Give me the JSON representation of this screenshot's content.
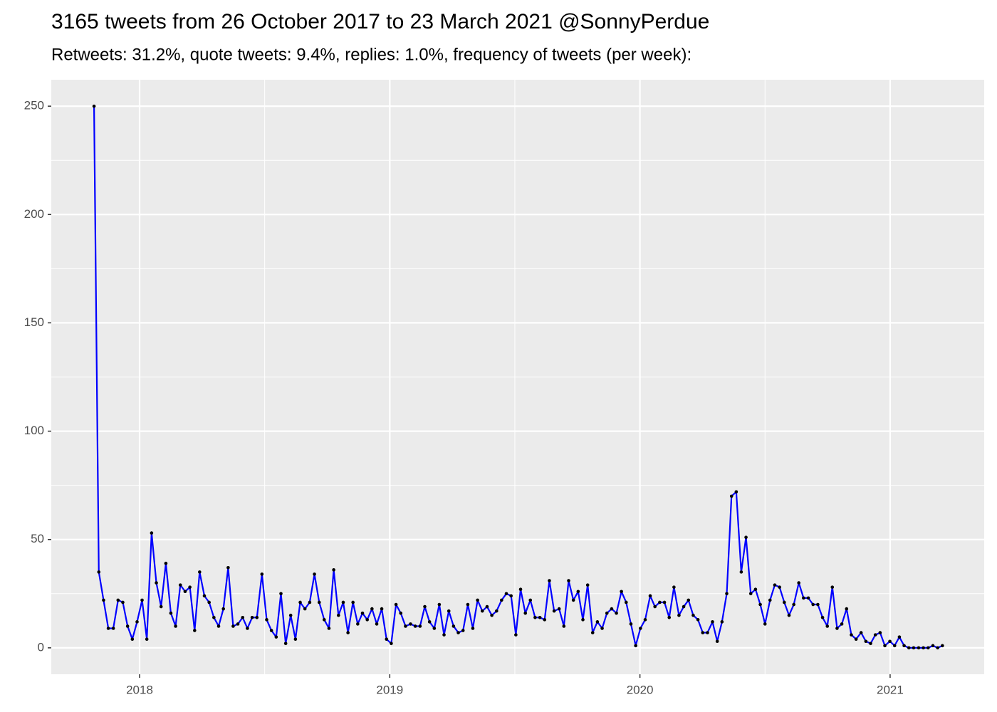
{
  "chart_data": {
    "type": "line",
    "title": "3165 tweets from 26 October 2017 to 23 March 2021 @SonnyPerdue",
    "subtitle": "Retweets: 31.2%, quote tweets: 9.4%, replies: 1.0%, frequency of tweets (per week):",
    "x": [
      2017.818,
      2017.837,
      2017.856,
      2017.875,
      2017.895,
      2017.914,
      2017.933,
      2017.952,
      2017.971,
      2017.99,
      2018.01,
      2018.029,
      2018.048,
      2018.067,
      2018.086,
      2018.105,
      2018.125,
      2018.144,
      2018.163,
      2018.182,
      2018.201,
      2018.22,
      2018.24,
      2018.259,
      2018.278,
      2018.297,
      2018.316,
      2018.335,
      2018.354,
      2018.374,
      2018.393,
      2018.412,
      2018.431,
      2018.45,
      2018.469,
      2018.489,
      2018.508,
      2018.527,
      2018.546,
      2018.565,
      2018.584,
      2018.604,
      2018.623,
      2018.642,
      2018.661,
      2018.68,
      2018.699,
      2018.718,
      2018.738,
      2018.757,
      2018.776,
      2018.795,
      2018.814,
      2018.833,
      2018.853,
      2018.872,
      2018.891,
      2018.91,
      2018.929,
      2018.948,
      2018.968,
      2018.987,
      2019.006,
      2019.025,
      2019.044,
      2019.063,
      2019.083,
      2019.102,
      2019.121,
      2019.14,
      2019.159,
      2019.178,
      2019.198,
      2019.217,
      2019.236,
      2019.255,
      2019.274,
      2019.293,
      2019.312,
      2019.332,
      2019.351,
      2019.37,
      2019.389,
      2019.408,
      2019.427,
      2019.447,
      2019.466,
      2019.485,
      2019.504,
      2019.523,
      2019.542,
      2019.562,
      2019.581,
      2019.6,
      2019.619,
      2019.638,
      2019.657,
      2019.677,
      2019.696,
      2019.715,
      2019.734,
      2019.753,
      2019.772,
      2019.791,
      2019.811,
      2019.83,
      2019.849,
      2019.868,
      2019.887,
      2019.906,
      2019.926,
      2019.945,
      2019.964,
      2019.983,
      2020.002,
      2020.021,
      2020.041,
      2020.06,
      2020.079,
      2020.098,
      2020.117,
      2020.136,
      2020.156,
      2020.175,
      2020.194,
      2020.213,
      2020.232,
      2020.251,
      2020.27,
      2020.29,
      2020.309,
      2020.328,
      2020.347,
      2020.366,
      2020.385,
      2020.405,
      2020.424,
      2020.443,
      2020.462,
      2020.481,
      2020.5,
      2020.52,
      2020.539,
      2020.558,
      2020.577,
      2020.596,
      2020.615,
      2020.635,
      2020.654,
      2020.673,
      2020.692,
      2020.711,
      2020.73,
      2020.749,
      2020.769,
      2020.788,
      2020.807,
      2020.826,
      2020.845,
      2020.864,
      2020.884,
      2020.903,
      2020.922,
      2020.941,
      2020.96,
      2020.979,
      2020.999,
      2021.018,
      2021.037,
      2021.056,
      2021.075,
      2021.094,
      2021.114,
      2021.133,
      2021.152,
      2021.171,
      2021.19,
      2021.209
    ],
    "values": [
      250,
      35,
      22,
      9,
      9,
      22,
      21,
      10,
      4,
      12,
      22,
      4,
      53,
      30,
      19,
      39,
      16,
      10,
      29,
      26,
      28,
      8,
      35,
      24,
      21,
      14,
      10,
      18,
      37,
      10,
      11,
      14,
      9,
      14,
      14,
      34,
      13,
      8,
      5,
      25,
      2,
      15,
      4,
      21,
      18,
      21,
      34,
      21,
      13,
      9,
      36,
      15,
      21,
      7,
      21,
      11,
      16,
      13,
      18,
      11,
      18,
      4,
      2,
      20,
      16,
      10,
      11,
      10,
      10,
      19,
      12,
      9,
      20,
      6,
      17,
      10,
      7,
      8,
      20,
      9,
      22,
      17,
      19,
      15,
      17,
      22,
      25,
      24,
      6,
      27,
      16,
      22,
      14,
      14,
      13,
      31,
      17,
      18,
      10,
      31,
      22,
      26,
      13,
      29,
      7,
      12,
      9,
      16,
      18,
      16,
      26,
      21,
      11,
      1,
      9,
      13,
      24,
      19,
      21,
      21,
      14,
      28,
      15,
      19,
      22,
      15,
      13,
      7,
      7,
      12,
      3,
      12,
      25,
      70,
      72,
      35,
      51,
      25,
      27,
      20,
      11,
      22,
      29,
      28,
      21,
      15,
      20,
      30,
      23,
      23,
      20,
      20,
      14,
      10,
      28,
      9,
      11,
      18,
      6,
      4,
      7,
      3,
      2,
      6,
      7,
      1,
      3,
      1,
      5,
      1,
      0,
      0,
      0,
      0,
      0,
      1,
      0,
      1
    ],
    "color": "#0000ff",
    "point_color": "#000000",
    "xlim": [
      2017.647,
      2021.376
    ],
    "xticks": [
      2018,
      2019,
      2020,
      2021
    ],
    "ylim": [
      -12.2,
      262.2
    ],
    "yticks": [
      0,
      50,
      100,
      150,
      200,
      250
    ],
    "grid": true
  }
}
